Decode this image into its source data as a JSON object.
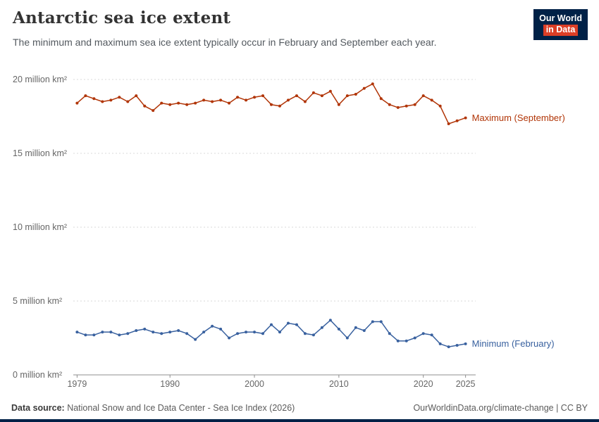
{
  "header": {
    "title": "Antarctic sea ice extent",
    "subtitle": "The minimum and maximum sea ice extent typically occur in February and September each year.",
    "logo": {
      "line1": "Our World",
      "line2": "in Data",
      "bg": "#002147",
      "accent": "#dc3e26"
    }
  },
  "chart_data": {
    "type": "line",
    "title": "Antarctic sea ice extent",
    "xlabel": "",
    "ylabel": "million km²",
    "x": [
      1979,
      1980,
      1981,
      1982,
      1983,
      1984,
      1985,
      1986,
      1987,
      1988,
      1989,
      1990,
      1991,
      1992,
      1993,
      1994,
      1995,
      1996,
      1997,
      1998,
      1999,
      2000,
      2001,
      2002,
      2003,
      2004,
      2005,
      2006,
      2007,
      2008,
      2009,
      2010,
      2011,
      2012,
      2013,
      2014,
      2015,
      2016,
      2017,
      2018,
      2019,
      2020,
      2021,
      2022,
      2023,
      2024,
      2025
    ],
    "series": [
      {
        "name": "Maximum (September)",
        "color": "#b13507",
        "values": [
          18.4,
          18.9,
          18.7,
          18.5,
          18.6,
          18.8,
          18.5,
          18.9,
          18.2,
          17.9,
          18.4,
          18.3,
          18.4,
          18.3,
          18.4,
          18.6,
          18.5,
          18.6,
          18.4,
          18.8,
          18.6,
          18.8,
          18.9,
          18.3,
          18.2,
          18.6,
          18.9,
          18.5,
          19.1,
          18.9,
          19.2,
          18.3,
          18.9,
          19.0,
          19.4,
          19.7,
          18.7,
          18.3,
          18.1,
          18.2,
          18.3,
          18.9,
          18.6,
          18.2,
          17.0,
          17.2,
          17.4
        ]
      },
      {
        "name": "Minimum (February)",
        "color": "#39619f",
        "values": [
          2.9,
          2.7,
          2.7,
          2.9,
          2.9,
          2.7,
          2.8,
          3.0,
          3.1,
          2.9,
          2.8,
          2.9,
          3.0,
          2.8,
          2.4,
          2.9,
          3.3,
          3.1,
          2.5,
          2.8,
          2.9,
          2.9,
          2.8,
          3.4,
          2.9,
          3.5,
          3.4,
          2.8,
          2.7,
          3.2,
          3.7,
          3.1,
          2.5,
          3.2,
          3.0,
          3.6,
          3.6,
          2.8,
          2.3,
          2.3,
          2.5,
          2.8,
          2.7,
          2.1,
          1.9,
          2.0,
          2.1
        ]
      }
    ],
    "yticks": [
      {
        "value": 0,
        "label": "0 million km²"
      },
      {
        "value": 5,
        "label": "5 million km²"
      },
      {
        "value": 10,
        "label": "10 million km²"
      },
      {
        "value": 15,
        "label": "15 million km²"
      },
      {
        "value": 20,
        "label": "20 million km²"
      }
    ],
    "xticks": [
      1979,
      1990,
      2000,
      2010,
      2020,
      2025
    ],
    "ylim": [
      0,
      20
    ],
    "xlim": [
      1977.8,
      2026.2
    ],
    "grid": true,
    "grid_color": "#d9d9d9",
    "axis_color": "#8f8f8f",
    "tick_color": "#666666",
    "legend_position": "right-end-labels"
  },
  "footer": {
    "source_label": "Data source:",
    "source_text": " National Snow and Ice Data Center - Sea Ice Index (2026)",
    "credit": "OurWorldinData.org/climate-change | CC BY"
  }
}
